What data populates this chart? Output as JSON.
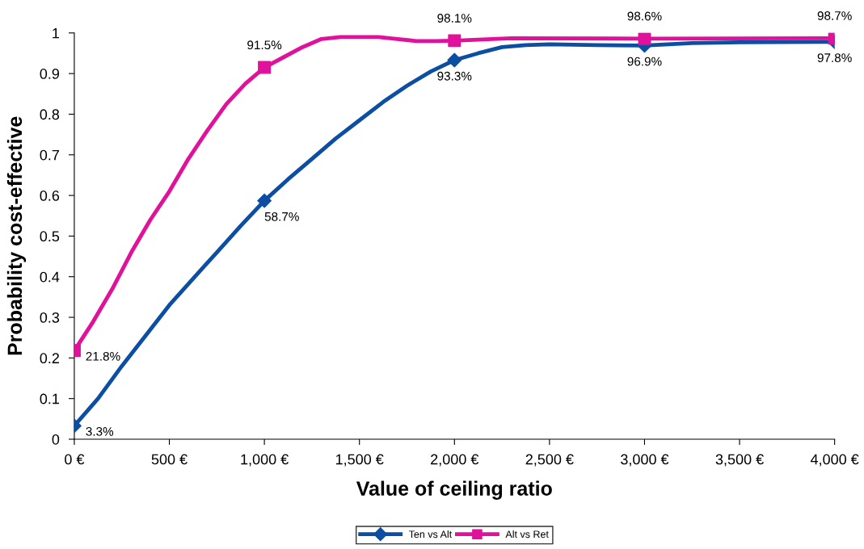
{
  "chart_data": {
    "type": "line",
    "xlabel": "Value of ceiling ratio",
    "ylabel": "Probability cost-effective",
    "xlim": [
      0,
      4000
    ],
    "xticks": [
      {
        "value": 0,
        "label": "0 €"
      },
      {
        "value": 500,
        "label": "500 €"
      },
      {
        "value": 1000,
        "label": "1,000 €"
      },
      {
        "value": 1500,
        "label": "1,500 €"
      },
      {
        "value": 2000,
        "label": "2,000 €"
      },
      {
        "value": 2500,
        "label": "2,500 €"
      },
      {
        "value": 3000,
        "label": "3,000 €"
      },
      {
        "value": 3500,
        "label": "3,500 €"
      },
      {
        "value": 4000,
        "label": "4,000 €"
      }
    ],
    "ylim": [
      0,
      1
    ],
    "yticks": [
      0,
      0.1,
      0.2,
      0.3,
      0.4,
      0.5,
      0.6,
      0.7,
      0.8,
      0.9,
      1
    ],
    "grid": false,
    "legend": "bottom",
    "line_style": "solid",
    "series": [
      {
        "name": "Ten vs Alt",
        "marker": "none",
        "color": "#0b4ea2",
        "x": [
          0,
          125,
          250,
          375,
          500,
          625,
          750,
          875,
          1000,
          1125,
          1250,
          1375,
          1500,
          1625,
          1750,
          1875,
          2000,
          2125,
          2250,
          2375,
          2500,
          2750,
          3000,
          3250,
          3500,
          4000
        ],
        "values": [
          0.033,
          0.1,
          0.18,
          0.255,
          0.33,
          0.395,
          0.46,
          0.525,
          0.587,
          0.64,
          0.69,
          0.74,
          0.785,
          0.83,
          0.87,
          0.905,
          0.933,
          0.95,
          0.965,
          0.97,
          0.972,
          0.97,
          0.969,
          0.975,
          0.977,
          0.978
        ]
      },
      {
        "name": "Alt vs Ret",
        "marker": "none",
        "color": "#e0119a",
        "x": [
          0,
          100,
          200,
          300,
          400,
          500,
          600,
          700,
          800,
          900,
          1000,
          1100,
          1200,
          1300,
          1400,
          1600,
          1700,
          1800,
          1900,
          2000,
          2200,
          2300,
          3000,
          4000
        ],
        "values": [
          0.218,
          0.29,
          0.37,
          0.46,
          0.54,
          0.61,
          0.69,
          0.76,
          0.825,
          0.875,
          0.915,
          0.94,
          0.965,
          0.985,
          0.99,
          0.99,
          0.985,
          0.98,
          0.98,
          0.981,
          0.985,
          0.987,
          0.986,
          0.987
        ]
      },
      {
        "type": "scatter",
        "marker": "diamond",
        "color": "#0b4ea2",
        "x": [
          0,
          1000,
          2000,
          3000,
          4000
        ],
        "values": [
          0.033,
          0.587,
          0.933,
          0.969,
          0.978
        ],
        "value_labels": [
          "3.3%",
          "58.7%",
          "93.3%",
          "96.9%",
          "97.8%"
        ]
      },
      {
        "type": "scatter",
        "marker": "square",
        "color": "#e0119a",
        "x": [
          0,
          1000,
          2000,
          3000,
          4000
        ],
        "values": [
          0.218,
          0.915,
          0.981,
          0.986,
          0.987
        ],
        "value_labels": [
          "21.8%",
          "91.5%",
          "98.1%",
          "98.6%",
          "98.7%"
        ]
      }
    ]
  }
}
